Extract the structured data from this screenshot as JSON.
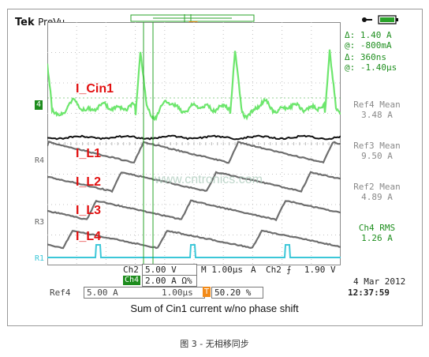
{
  "brand": {
    "name": "Tek",
    "mode": "PreVu"
  },
  "cursors": {
    "delta_label": "Δ:",
    "at_label": "@:",
    "i_delta": "1.40 A",
    "i_at": "-800mA",
    "t_delta": "360ns",
    "t_at": "-1.40µs"
  },
  "trace_labels": [
    "I_Cin1",
    "I_L1",
    "I_L2",
    "I_L3",
    "I_L4"
  ],
  "channel_markers": {
    "ch4": "4",
    "ref4": "R4",
    "ref3": "R3",
    "ref1": "R1",
    "trigger": "T"
  },
  "measurements": [
    {
      "name": "Ref4 Mean",
      "value": "3.48 A",
      "color": "#8a8a8a"
    },
    {
      "name": "Ref3 Mean",
      "value": "9.50 A",
      "color": "#8a8a8a"
    },
    {
      "name": "Ref2 Mean",
      "value": "4.89 A",
      "color": "#8a8a8a"
    },
    {
      "name": "Ch4 RMS",
      "value": "1.26 A",
      "color": "#1f8f1f"
    }
  ],
  "watermark": "www.cntronics.com",
  "settings": {
    "ch2_label": "Ch2",
    "ch2_scale": "5.00 V",
    "ch4_label": "Ch4",
    "ch4_scale": "2.00 A Ω%",
    "m_label": "M",
    "timebase": "1.00µs",
    "a_label": "A",
    "trig_source": "Ch2",
    "trig_slope": "⨍",
    "trig_level": "1.90 V",
    "ref4_label": "Ref4",
    "ref4_scale": "5.00 A",
    "ref4_time": "1.00µs",
    "t_marker": "T",
    "trigger_pos": "50.20 %",
    "date": "4 Mar 2012",
    "time": "12:37:59"
  },
  "caption": "Sum of Cin1 current w/no phase shift",
  "figure_caption": "图 3 - 无相移同步",
  "colors": {
    "ch4": "#5de35d",
    "ref": "#555555",
    "ch2": "#3cc7d8",
    "trigger": "#f28a18",
    "label_red": "#e21010"
  }
}
